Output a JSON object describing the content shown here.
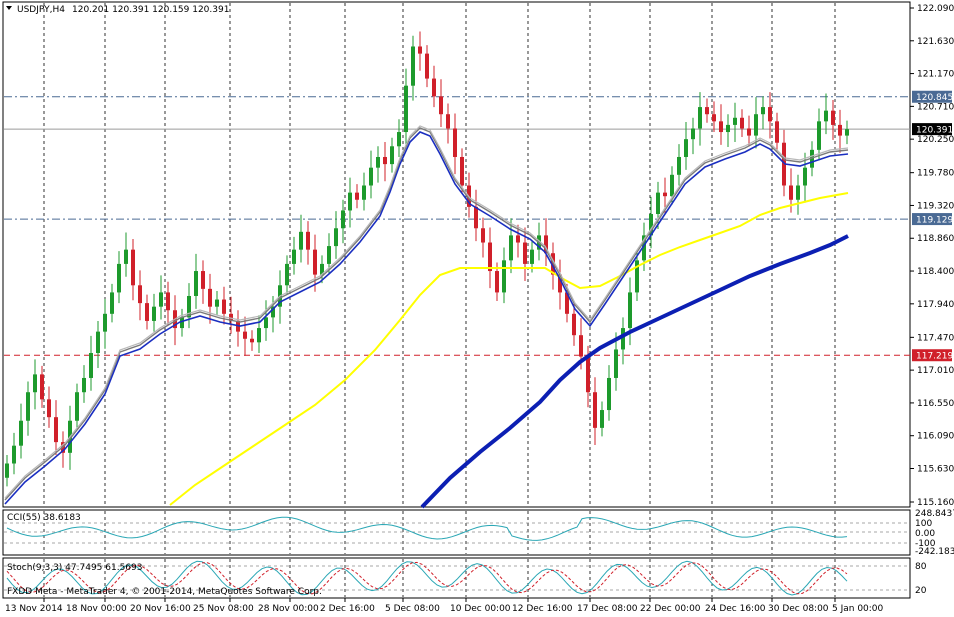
{
  "chart_data": {
    "type": "candlestick",
    "symbol_header": "USDJPY,H4",
    "ohlc_header": "120.201 120.391 120.159 120.391",
    "ylim": [
      115.0,
      122.1
    ],
    "price_ticks": [
      "122.090",
      "121.630",
      "121.170",
      "120.710",
      "120.250",
      "119.780",
      "119.320",
      "118.860",
      "118.400",
      "117.940",
      "117.470",
      "117.010",
      "116.550",
      "116.090",
      "115.630",
      "115.160"
    ],
    "time_labels": [
      "13 Nov 2014",
      "18 Nov 00:00",
      "20 Nov 16:00",
      "25 Nov 08:00",
      "28 Nov 00:00",
      "2 Dec 16:00",
      "5 Dec 08:00",
      "10 Dec 00:00",
      "12 Dec 16:00",
      "17 Dec 08:00",
      "22 Dec 00:00",
      "24 Dec 16:00",
      "30 Dec 08:00",
      "5 Jan 00:00"
    ],
    "horizontal_levels": [
      {
        "label": "120.845",
        "value": 120.845,
        "style": "dashdot",
        "color": "#4a6a94"
      },
      {
        "label": "120.391",
        "value": 120.391,
        "style": "solid",
        "color": "#9a9a9a"
      },
      {
        "label": "119.129",
        "value": 119.129,
        "style": "dashdot",
        "color": "#4a6a94"
      },
      {
        "label": "117.219",
        "value": 117.219,
        "style": "dashed",
        "color": "#d0202a"
      }
    ],
    "closes": [
      115.7,
      115.95,
      116.3,
      116.7,
      116.95,
      116.6,
      116.35,
      116.0,
      115.85,
      116.3,
      116.7,
      116.9,
      117.25,
      117.55,
      117.8,
      118.1,
      118.5,
      118.7,
      118.2,
      117.95,
      117.7,
      117.9,
      118.1,
      117.85,
      117.6,
      117.75,
      118.05,
      118.4,
      118.15,
      117.9,
      118.0,
      117.8,
      117.7,
      117.55,
      117.45,
      117.4,
      117.6,
      117.75,
      117.9,
      118.2,
      118.5,
      118.7,
      118.95,
      118.7,
      118.35,
      118.5,
      118.75,
      119.0,
      119.25,
      119.5,
      119.4,
      119.6,
      119.85,
      120.0,
      119.9,
      120.15,
      120.35,
      121.0,
      121.55,
      121.45,
      121.1,
      120.85,
      120.6,
      120.4,
      120.0,
      119.6,
      119.3,
      119.0,
      118.8,
      118.4,
      118.1,
      118.55,
      118.9,
      118.8,
      118.5,
      118.7,
      118.9,
      118.65,
      118.35,
      118.1,
      117.8,
      117.5,
      117.2,
      116.7,
      116.2,
      116.45,
      116.9,
      117.3,
      117.6,
      118.1,
      118.55,
      118.9,
      119.2,
      119.5,
      119.45,
      119.75,
      120.0,
      120.25,
      120.4,
      120.7,
      120.6,
      120.5,
      120.35,
      120.45,
      120.55,
      120.4,
      120.3,
      120.6,
      120.7,
      120.5,
      120.2,
      119.6,
      119.4,
      119.6,
      119.85,
      120.1,
      120.5,
      120.65,
      120.45,
      120.3,
      120.39
    ],
    "ema_slow_points": [
      [
        170,
        505
      ],
      [
        195,
        485
      ],
      [
        225,
        465
      ],
      [
        255,
        445
      ],
      [
        285,
        425
      ],
      [
        315,
        405
      ],
      [
        345,
        380
      ],
      [
        375,
        350
      ],
      [
        400,
        320
      ],
      [
        420,
        295
      ],
      [
        440,
        275
      ],
      [
        460,
        268
      ],
      [
        480,
        268
      ],
      [
        500,
        268
      ],
      [
        520,
        268
      ],
      [
        545,
        268
      ],
      [
        565,
        280
      ],
      [
        580,
        288
      ],
      [
        600,
        286
      ],
      [
        620,
        276
      ],
      [
        640,
        265
      ],
      [
        660,
        255
      ],
      [
        680,
        247
      ],
      [
        700,
        240
      ],
      [
        720,
        233
      ],
      [
        740,
        226
      ],
      [
        760,
        215
      ],
      [
        780,
        208
      ],
      [
        800,
        203
      ],
      [
        820,
        198
      ],
      [
        848,
        193
      ]
    ],
    "sma_blue_points": [
      [
        422,
        507
      ],
      [
        450,
        478
      ],
      [
        480,
        452
      ],
      [
        510,
        428
      ],
      [
        540,
        402
      ],
      [
        560,
        380
      ],
      [
        580,
        362
      ],
      [
        600,
        348
      ],
      [
        630,
        332
      ],
      [
        660,
        318
      ],
      [
        690,
        304
      ],
      [
        720,
        290
      ],
      [
        750,
        276
      ],
      [
        780,
        264
      ],
      [
        810,
        253
      ],
      [
        830,
        245
      ],
      [
        848,
        236
      ]
    ],
    "ma_fast_points": [
      [
        5,
        500
      ],
      [
        25,
        478
      ],
      [
        45,
        462
      ],
      [
        65,
        445
      ],
      [
        85,
        420
      ],
      [
        105,
        390
      ],
      [
        120,
        352
      ],
      [
        140,
        345
      ],
      [
        160,
        330
      ],
      [
        180,
        318
      ],
      [
        200,
        312
      ],
      [
        220,
        318
      ],
      [
        240,
        322
      ],
      [
        260,
        318
      ],
      [
        280,
        298
      ],
      [
        300,
        288
      ],
      [
        320,
        278
      ],
      [
        340,
        260
      ],
      [
        360,
        238
      ],
      [
        380,
        212
      ],
      [
        390,
        188
      ],
      [
        400,
        160
      ],
      [
        410,
        138
      ],
      [
        420,
        128
      ],
      [
        430,
        132
      ],
      [
        440,
        150
      ],
      [
        455,
        180
      ],
      [
        470,
        200
      ],
      [
        490,
        212
      ],
      [
        510,
        225
      ],
      [
        530,
        235
      ],
      [
        545,
        248
      ],
      [
        560,
        275
      ],
      [
        575,
        305
      ],
      [
        590,
        322
      ],
      [
        605,
        300
      ],
      [
        625,
        270
      ],
      [
        645,
        240
      ],
      [
        665,
        210
      ],
      [
        685,
        180
      ],
      [
        705,
        163
      ],
      [
        725,
        155
      ],
      [
        745,
        148
      ],
      [
        760,
        140
      ],
      [
        770,
        145
      ],
      [
        785,
        160
      ],
      [
        800,
        162
      ],
      [
        815,
        157
      ],
      [
        830,
        152
      ],
      [
        848,
        150
      ]
    ],
    "cci_label": "CCI(55) 38.6183",
    "cci_ticks": [
      "248.8437",
      "100",
      "0.00",
      "-100",
      "-242.1832"
    ],
    "stoch_label": "Stoch(9,3,3) 47.7495 61.5693",
    "stoch_ticks": [
      "80",
      "20"
    ],
    "copyright": "FXDD Meta - MetaTrader 4, © 2001-2014, MetaQuotes Software Corp."
  }
}
